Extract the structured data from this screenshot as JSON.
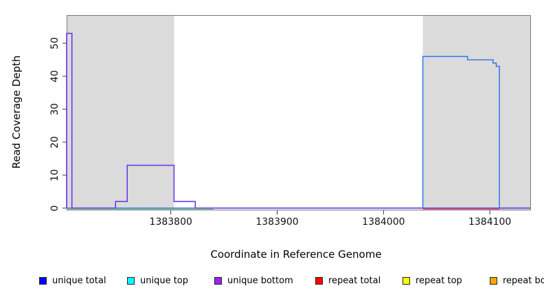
{
  "chart_data": {
    "type": "line",
    "subtype": "step-coverage",
    "title": "",
    "xlabel": "Coordinate in Reference Genome",
    "ylabel": "Read Coverage Depth",
    "xlim": [
      1383702,
      1384138
    ],
    "ylim": [
      0,
      58.5
    ],
    "grid": false,
    "background_color": "#FFFFFF",
    "x_ticks": [
      {
        "value": 1383800,
        "label": "1383800"
      },
      {
        "value": 1383900,
        "label": "1383900"
      },
      {
        "value": 1384000,
        "label": "1384000"
      },
      {
        "value": 1384100,
        "label": "1384100"
      }
    ],
    "y_ticks": [
      {
        "value": 0,
        "label": "0"
      },
      {
        "value": 10,
        "label": "10"
      },
      {
        "value": 20,
        "label": "20"
      },
      {
        "value": 30,
        "label": "30"
      },
      {
        "value": 40,
        "label": "40"
      },
      {
        "value": 50,
        "label": "50"
      }
    ],
    "shaded_regions": [
      {
        "x0": 1383702,
        "x1": 1383803,
        "color": "#DBDBDB"
      },
      {
        "x0": 1384037,
        "x1": 1384138,
        "color": "#DBDBDB"
      }
    ],
    "series": [
      {
        "name": "top-strand overlap line (green)",
        "color": "#82C882",
        "points": [
          [
            1383703,
            0
          ],
          [
            1383840,
            0
          ]
        ]
      },
      {
        "name": "repeat total",
        "color": "#F26B6B",
        "points": [
          [
            1384037,
            0
          ],
          [
            1384109,
            0
          ]
        ]
      },
      {
        "name": "unique total",
        "color": "#3D7BEA",
        "points": [
          [
            1383702,
            0
          ],
          [
            1384037,
            0
          ],
          [
            1384037,
            46
          ],
          [
            1384079,
            46
          ],
          [
            1384079,
            45
          ],
          [
            1384103,
            45
          ],
          [
            1384103,
            44
          ],
          [
            1384106,
            44
          ],
          [
            1384106,
            43
          ],
          [
            1384109,
            43
          ],
          [
            1384109,
            0
          ],
          [
            1384138,
            0
          ]
        ]
      },
      {
        "name": "unique bottom",
        "color": "#6B3AE8",
        "points": [
          [
            1383702,
            0
          ],
          [
            1383702,
            53
          ],
          [
            1383707,
            53
          ],
          [
            1383707,
            0
          ],
          [
            1383748,
            0
          ],
          [
            1383748,
            2
          ],
          [
            1383759,
            2
          ],
          [
            1383759,
            13
          ],
          [
            1383803,
            13
          ],
          [
            1383803,
            2
          ],
          [
            1383823,
            2
          ],
          [
            1383823,
            0
          ],
          [
            1384138,
            0
          ]
        ]
      }
    ],
    "legend": {
      "position": "bottom",
      "entries": [
        {
          "label": "unique total",
          "color": "#0000FF"
        },
        {
          "label": "unique top",
          "color": "#00FFFF"
        },
        {
          "label": "unique bottom",
          "color": "#A020F0"
        },
        {
          "label": "repeat total",
          "color": "#FF0000"
        },
        {
          "label": "repeat top",
          "color": "#FFFF00"
        },
        {
          "label": "repeat bottom",
          "color": "#FFA500"
        }
      ]
    }
  }
}
